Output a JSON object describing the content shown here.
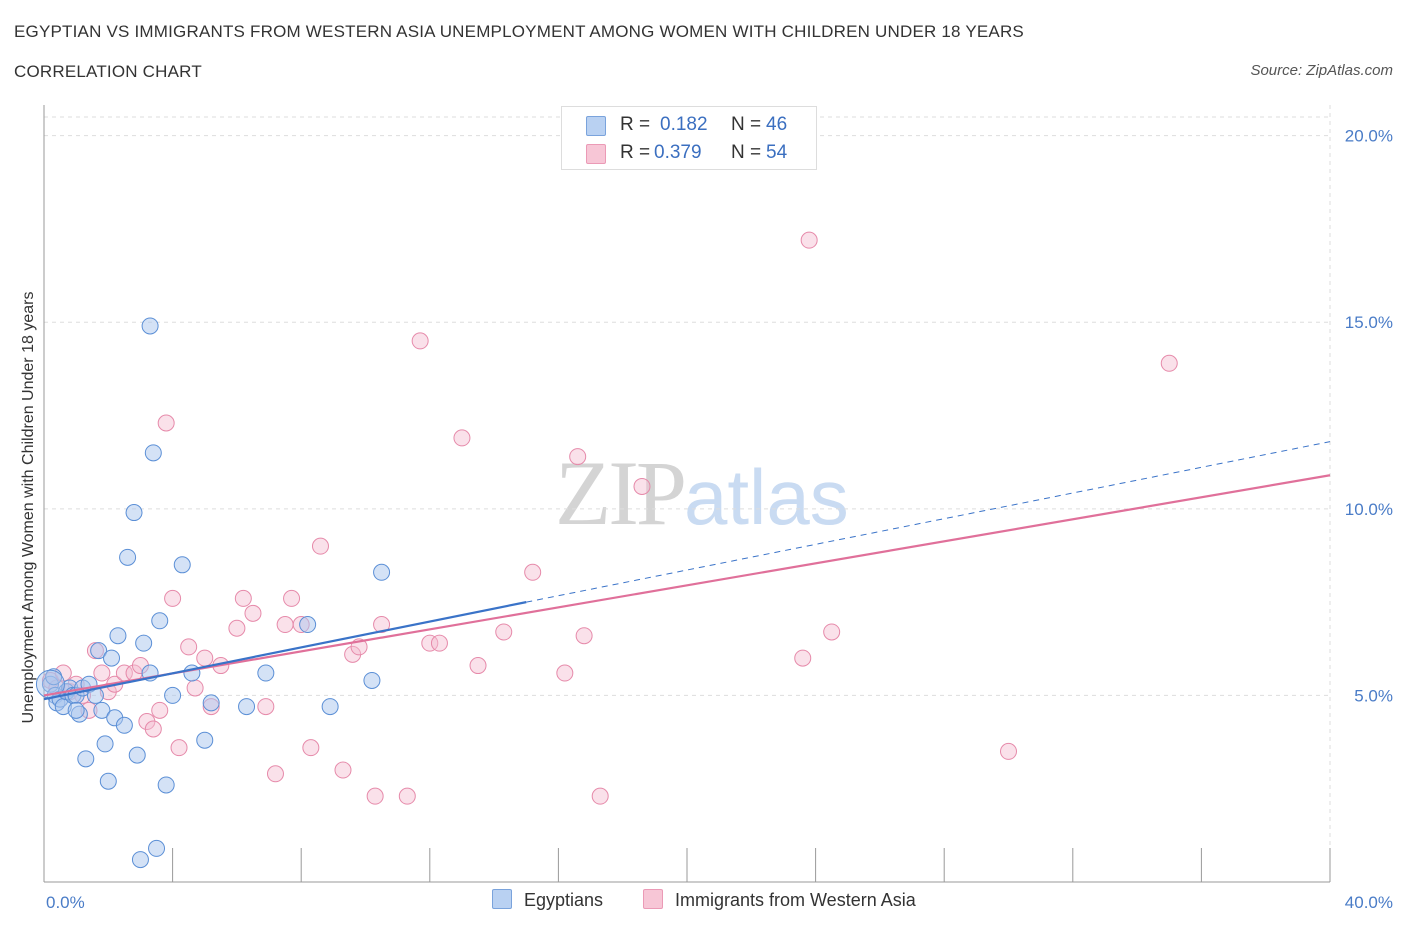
{
  "title": "EGYPTIAN VS IMMIGRANTS FROM WESTERN ASIA UNEMPLOYMENT AMONG WOMEN WITH CHILDREN UNDER 18 YEARS",
  "subtitle": "CORRELATION CHART",
  "source": "Source: ZipAtlas.com",
  "watermark": {
    "zip": "ZIP",
    "atlas": "atlas"
  },
  "legend": {
    "rows": [
      {
        "r_label": "R =",
        "r_value": "0.182",
        "n_label": "N =",
        "n_value": "46",
        "color": "#b9d1f2"
      },
      {
        "r_label": "R =",
        "r_value": "0.379",
        "n_label": "N =",
        "n_value": "54",
        "color": "#f7c6d6"
      }
    ]
  },
  "bottom_legend": [
    {
      "label": "Egyptians",
      "color": "#b9d1f2"
    },
    {
      "label": "Immigrants from Western Asia",
      "color": "#f7c6d6"
    }
  ],
  "colors": {
    "egyptians_fill": "#a9c6ee",
    "egyptians_stroke": "#5b8fd6",
    "egyptians_line": "#3a73c8",
    "immigrants_fill": "#f5bdd0",
    "immigrants_stroke": "#e68aaa",
    "immigrants_line": "#e0709a",
    "axis_text": "#4a7cc7",
    "grid": "#dddddd"
  },
  "chart_data": {
    "type": "scatter",
    "title": "EGYPTIAN VS IMMIGRANTS FROM WESTERN ASIA UNEMPLOYMENT AMONG WOMEN WITH CHILDREN UNDER 18 YEARS",
    "xlabel": "",
    "ylabel": "Unemployment Among Women with Children Under 18 years",
    "xlim": [
      0,
      40
    ],
    "ylim": [
      0,
      20.5
    ],
    "x_tick_labels": [
      "0.0%",
      "40.0%"
    ],
    "y_ticks": [
      5,
      10,
      15,
      20
    ],
    "y_tick_labels": [
      "5.0%",
      "10.0%",
      "15.0%",
      "20.0%"
    ],
    "grid": true,
    "legend_position": "top-center",
    "series": [
      {
        "name": "Egyptians",
        "R": 0.182,
        "N": 46,
        "trend": {
          "x0": 0,
          "y0": 4.9,
          "x1": 15.0,
          "y1": 7.5,
          "dashed_extension_to": [
            40,
            11.8
          ]
        },
        "points": [
          [
            0.2,
            5.3
          ],
          [
            0.3,
            5.5
          ],
          [
            0.35,
            5.0
          ],
          [
            0.4,
            4.8
          ],
          [
            0.5,
            4.9
          ],
          [
            0.6,
            4.7
          ],
          [
            0.7,
            5.1
          ],
          [
            0.8,
            5.2
          ],
          [
            0.9,
            5.0
          ],
          [
            1.0,
            5.0
          ],
          [
            1.1,
            4.5
          ],
          [
            1.2,
            5.2
          ],
          [
            1.3,
            3.3
          ],
          [
            1.4,
            5.3
          ],
          [
            1.6,
            5.0
          ],
          [
            1.7,
            6.2
          ],
          [
            1.8,
            4.6
          ],
          [
            1.9,
            3.7
          ],
          [
            2.0,
            2.7
          ],
          [
            2.1,
            6.0
          ],
          [
            2.2,
            4.4
          ],
          [
            2.3,
            6.6
          ],
          [
            2.5,
            4.2
          ],
          [
            2.6,
            8.7
          ],
          [
            2.8,
            9.9
          ],
          [
            2.9,
            3.4
          ],
          [
            3.0,
            0.6
          ],
          [
            3.1,
            6.4
          ],
          [
            3.3,
            5.6
          ],
          [
            3.4,
            11.5
          ],
          [
            3.6,
            7.0
          ],
          [
            3.8,
            2.6
          ],
          [
            4.0,
            5.0
          ],
          [
            4.3,
            8.5
          ],
          [
            4.6,
            5.6
          ],
          [
            5.0,
            3.8
          ],
          [
            5.2,
            4.8
          ],
          [
            6.3,
            4.7
          ],
          [
            6.9,
            5.6
          ],
          [
            8.2,
            6.9
          ],
          [
            8.9,
            4.7
          ],
          [
            10.2,
            5.4
          ],
          [
            10.5,
            8.3
          ],
          [
            3.3,
            14.9
          ],
          [
            3.5,
            0.9
          ],
          [
            1.0,
            4.6
          ]
        ]
      },
      {
        "name": "Immigrants from Western Asia",
        "R": 0.379,
        "N": 54,
        "trend": {
          "x0": 0,
          "y0": 5.0,
          "x1": 40,
          "y1": 10.9
        },
        "points": [
          [
            0.2,
            5.4
          ],
          [
            0.4,
            5.2
          ],
          [
            0.6,
            5.6
          ],
          [
            0.8,
            5.1
          ],
          [
            1.0,
            5.3
          ],
          [
            1.2,
            5.0
          ],
          [
            1.4,
            4.6
          ],
          [
            1.6,
            6.2
          ],
          [
            1.8,
            5.6
          ],
          [
            2.0,
            5.1
          ],
          [
            2.2,
            5.3
          ],
          [
            2.5,
            5.6
          ],
          [
            2.8,
            5.6
          ],
          [
            3.0,
            5.8
          ],
          [
            3.2,
            4.3
          ],
          [
            3.4,
            4.1
          ],
          [
            3.6,
            4.6
          ],
          [
            3.8,
            12.3
          ],
          [
            4.0,
            7.6
          ],
          [
            4.2,
            3.6
          ],
          [
            4.5,
            6.3
          ],
          [
            4.7,
            5.2
          ],
          [
            5.0,
            6.0
          ],
          [
            5.2,
            4.7
          ],
          [
            5.5,
            5.8
          ],
          [
            6.0,
            6.8
          ],
          [
            6.2,
            7.6
          ],
          [
            6.5,
            7.2
          ],
          [
            6.9,
            4.7
          ],
          [
            7.2,
            2.9
          ],
          [
            7.5,
            6.9
          ],
          [
            7.7,
            7.6
          ],
          [
            8.0,
            6.9
          ],
          [
            8.3,
            3.6
          ],
          [
            8.6,
            9.0
          ],
          [
            9.3,
            3.0
          ],
          [
            9.6,
            6.1
          ],
          [
            9.8,
            6.3
          ],
          [
            10.3,
            2.3
          ],
          [
            10.5,
            6.9
          ],
          [
            11.3,
            2.3
          ],
          [
            11.7,
            14.5
          ],
          [
            12.0,
            6.4
          ],
          [
            12.3,
            6.4
          ],
          [
            13.0,
            11.9
          ],
          [
            13.5,
            5.8
          ],
          [
            14.3,
            6.7
          ],
          [
            15.2,
            8.3
          ],
          [
            16.2,
            5.6
          ],
          [
            16.6,
            11.4
          ],
          [
            16.8,
            6.6
          ],
          [
            17.3,
            2.3
          ],
          [
            18.6,
            10.6
          ],
          [
            23.6,
            6.0
          ]
        ],
        "outliers": [
          [
            23.8,
            17.2
          ],
          [
            24.5,
            6.7
          ],
          [
            30.0,
            3.5
          ],
          [
            35.0,
            13.9
          ]
        ]
      }
    ]
  }
}
